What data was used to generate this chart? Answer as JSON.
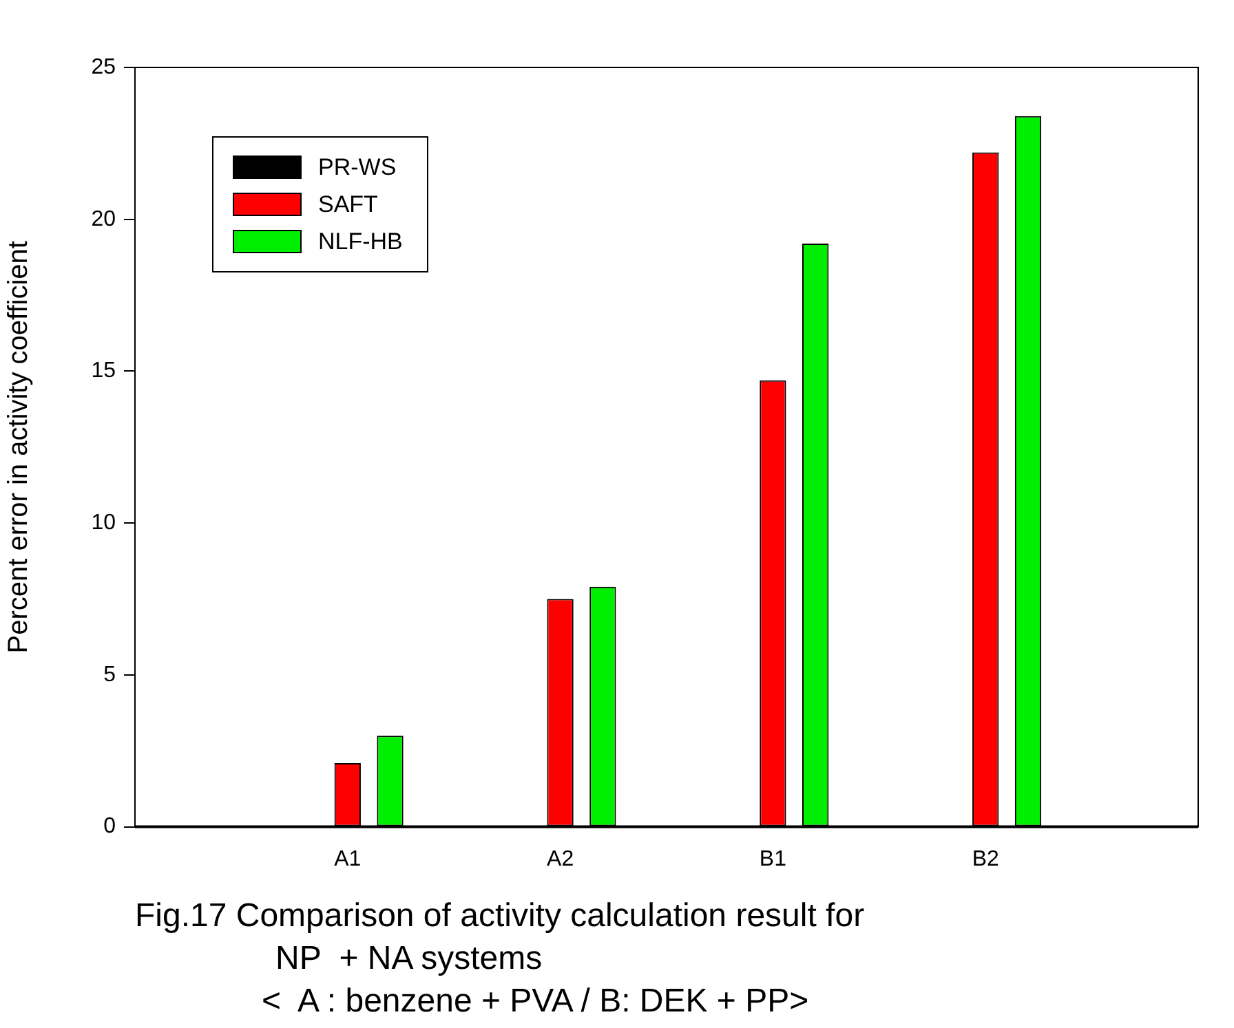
{
  "chart_data": {
    "type": "bar",
    "categories": [
      "A1",
      "A2",
      "B1",
      "B2"
    ],
    "series": [
      {
        "name": "PR-WS",
        "color": "#000000",
        "values": [
          null,
          null,
          null,
          null
        ]
      },
      {
        "name": "SAFT",
        "color": "#ff0000",
        "values": [
          2.1,
          7.5,
          14.7,
          22.2
        ]
      },
      {
        "name": "NLF-HB",
        "color": "#00ee00",
        "values": [
          3.0,
          7.9,
          19.2,
          23.4
        ]
      }
    ],
    "ylabel": "Percent error in activity coefficient",
    "ylim": [
      0,
      25
    ],
    "yticks": [
      0,
      5,
      10,
      15,
      20,
      25
    ],
    "grid": false,
    "legend": "top left",
    "annotations": [
      "Fig.17 Comparison of activity calculation result for",
      "NP  + NA systems",
      "<  A : benzene + PVA / B: DEK + PP>"
    ]
  }
}
